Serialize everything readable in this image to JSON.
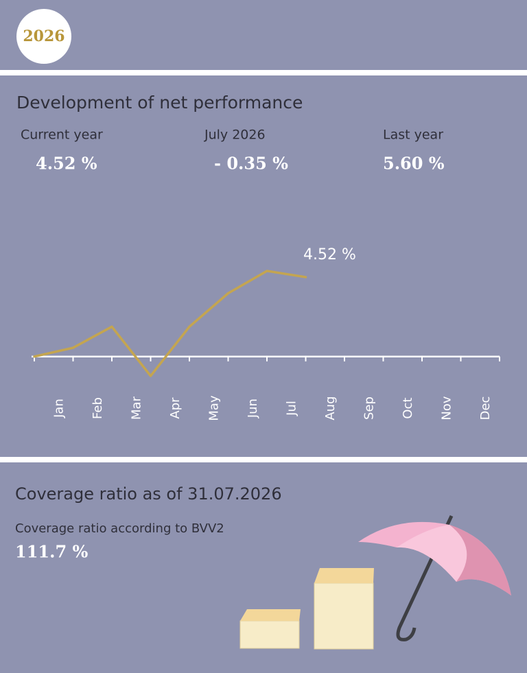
{
  "header": {
    "year": "2026"
  },
  "performance": {
    "title": "Development of net performance",
    "stats": [
      {
        "label": "Current year",
        "value": "4.52 %"
      },
      {
        "label": "July 2026",
        "value": "- 0.35 %"
      },
      {
        "label": "Last year",
        "value": "5.60 %"
      }
    ]
  },
  "chart_data": {
    "type": "line",
    "categories": [
      "Jan",
      "Feb",
      "Mar",
      "Apr",
      "May",
      "Jun",
      "Jul",
      "Aug",
      "Sep",
      "Oct",
      "Nov",
      "Dec"
    ],
    "values": [
      0.5,
      1.7,
      -1.1,
      1.7,
      3.6,
      4.87,
      4.52,
      null,
      null,
      null,
      null,
      null
    ],
    "value_labels": [
      null,
      null,
      null,
      null,
      null,
      null,
      "4.52 %",
      null,
      null,
      null,
      null,
      null
    ],
    "color": "#c4a550",
    "ylim": [
      -2,
      6
    ]
  },
  "coverage": {
    "title": "Coverage ratio as of 31.07.2026",
    "label": "Coverage ratio according to BVV2",
    "value": "111.7 %"
  }
}
